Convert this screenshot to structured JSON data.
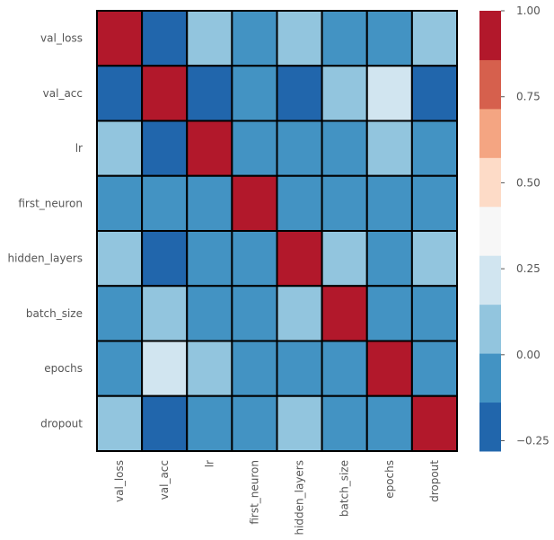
{
  "chart_data": {
    "type": "heatmap",
    "title": "",
    "xlabel": "",
    "ylabel": "",
    "rows": [
      "val_loss",
      "val_acc",
      "lr",
      "first_neuron",
      "hidden_layers",
      "batch_size",
      "epochs",
      "dropout"
    ],
    "columns": [
      "val_loss",
      "val_acc",
      "lr",
      "first_neuron",
      "hidden_layers",
      "batch_size",
      "epochs",
      "dropout"
    ],
    "values": [
      [
        1.0,
        -0.2,
        0.08,
        -0.05,
        0.08,
        -0.05,
        -0.05,
        0.08
      ],
      [
        -0.2,
        1.0,
        -0.2,
        -0.05,
        -0.2,
        0.08,
        0.2,
        -0.2
      ],
      [
        0.08,
        -0.2,
        1.0,
        -0.05,
        -0.05,
        -0.05,
        0.08,
        -0.05
      ],
      [
        -0.05,
        -0.05,
        -0.05,
        1.0,
        -0.05,
        -0.05,
        -0.05,
        -0.05
      ],
      [
        0.08,
        -0.2,
        -0.05,
        -0.05,
        1.0,
        0.08,
        -0.05,
        0.08
      ],
      [
        -0.05,
        0.08,
        -0.05,
        -0.05,
        0.08,
        1.0,
        -0.05,
        -0.05
      ],
      [
        -0.05,
        0.2,
        0.08,
        -0.05,
        -0.05,
        -0.05,
        1.0,
        -0.05
      ],
      [
        0.08,
        -0.2,
        -0.05,
        -0.05,
        0.08,
        -0.05,
        -0.05,
        1.0
      ]
    ],
    "colorbar": {
      "range": [
        -0.28,
        1.0
      ],
      "levels": 10,
      "colors": [
        "#2166ac",
        "#4393c3",
        "#92c5de",
        "#d1e5f0",
        "#f7f7f7",
        "#fddbc7",
        "#f4a582",
        "#d6604d",
        "#b2182b"
      ],
      "ticks": [
        -0.25,
        0.0,
        0.25,
        0.5,
        0.75,
        1.0
      ],
      "tick_labels": [
        "−0.25",
        "0.00",
        "0.25",
        "0.50",
        "0.75",
        "1.00"
      ]
    },
    "grid": true,
    "cell_border_color": "#000000"
  }
}
